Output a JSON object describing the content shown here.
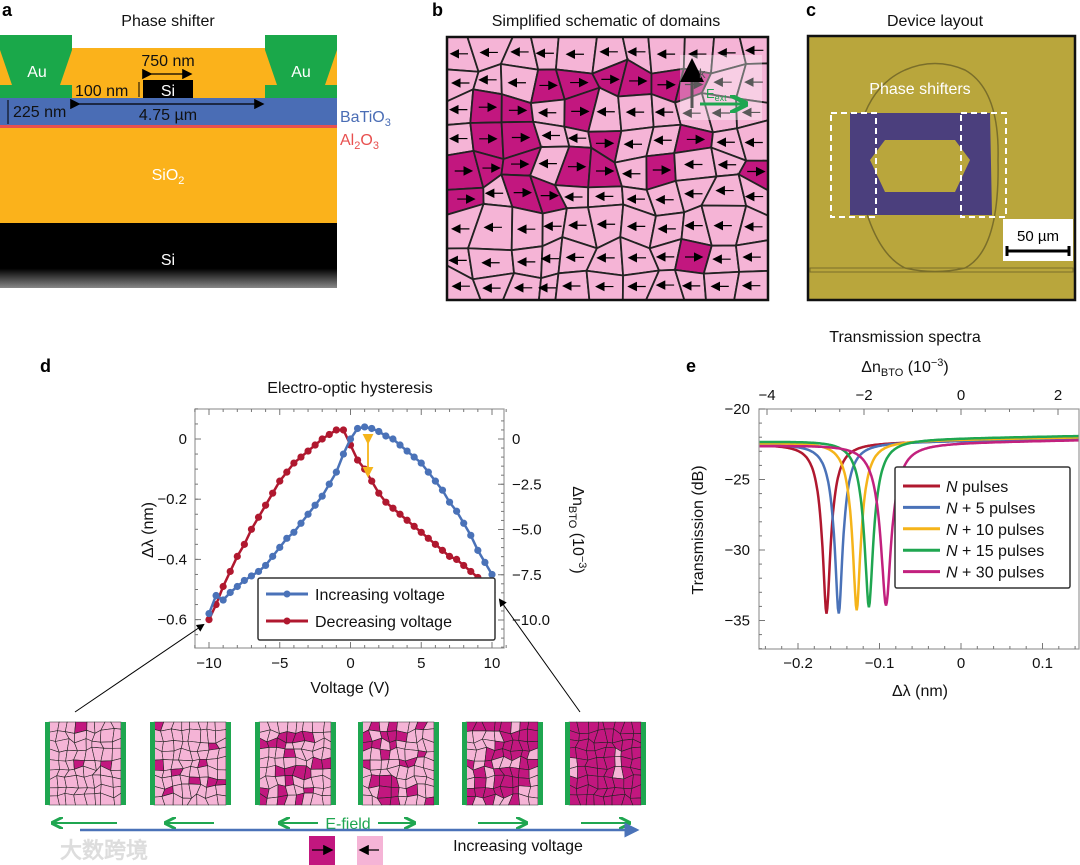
{
  "panels": {
    "a": {
      "letter": "a",
      "title": "Phase shifter",
      "au_label": "Au",
      "si_wg_label": "Si",
      "si_sub_label": "Si",
      "sio2": {
        "base": "SiO",
        "sub": "2"
      },
      "bto": {
        "base": "BaTiO",
        "sub": "3"
      },
      "alo": {
        "base": "Al",
        "sub1": "2",
        "mid": "O",
        "sub2": "3"
      },
      "dim_750": "750 nm",
      "dim_100": "100 nm",
      "dim_225": "225 nm",
      "dim_475": "4.75 µm",
      "colors": {
        "au": "#1aa84a",
        "cladding": "#fbb21b",
        "bto": "#4a6db5",
        "alo": "#e8504f",
        "si": "#000000"
      }
    },
    "b": {
      "letter": "b",
      "title": "Simplified schematic of domains",
      "k_label": "k",
      "e_label": {
        "base": "E",
        "sub": "ext"
      },
      "colors": {
        "switched": "#c2177f",
        "unswitched": "#f5b4d6"
      }
    },
    "c": {
      "letter": "c",
      "title": "Device layout",
      "phase_shifters_label": "Phase shifters",
      "scale_bar_label": "50 µm"
    },
    "d": {
      "letter": "d"
    },
    "e": {
      "letter": "e"
    }
  },
  "bottom": {
    "efield_label": "E-field",
    "increasing_voltage_label": "Increasing voltage",
    "domain_switched_fraction": [
      0.08,
      0.12,
      0.25,
      0.35,
      0.6,
      0.93
    ],
    "efield_direction": [
      "left",
      "left",
      "left",
      "right",
      "right",
      "right"
    ],
    "watermark": "大数跨境"
  },
  "chart_data": [
    {
      "type": "line",
      "title": "Electro-optic hysteresis",
      "xlabel": "Voltage (V)",
      "ylabel": "Δλ (nm)",
      "y2label": {
        "base": "Δn",
        "sub": "BTO",
        "unit": " (10",
        "sup": "−3",
        "close": ")"
      },
      "xlim": [
        -11,
        11
      ],
      "ylim": [
        -0.69,
        0.1
      ],
      "xticks": [
        "−10",
        "−5",
        "0",
        "5",
        "10"
      ],
      "yticks": [
        "0",
        "−0.2",
        "−0.4",
        "−0.6"
      ],
      "y2ticks": [
        "0",
        "−2.5",
        "−5.0",
        "−7.5",
        "−10.0"
      ],
      "x": [
        -10,
        -9.5,
        -9,
        -8.5,
        -8,
        -7.5,
        -7,
        -6.5,
        -6,
        -5.5,
        -5,
        -4.5,
        -4,
        -3.5,
        -3,
        -2.5,
        -2,
        -1.5,
        -1,
        -0.5,
        0,
        0.5,
        1,
        1.5,
        2,
        2.5,
        3,
        3.5,
        4,
        4.5,
        5,
        5.5,
        6,
        6.5,
        7,
        7.5,
        8,
        8.5,
        9,
        9.5,
        10
      ],
      "series": [
        {
          "name": "Increasing voltage",
          "color": "#4a72b8",
          "values": [
            -0.58,
            -0.52,
            -0.535,
            -0.51,
            -0.49,
            -0.47,
            -0.455,
            -0.44,
            -0.42,
            -0.39,
            -0.36,
            -0.33,
            -0.31,
            -0.28,
            -0.25,
            -0.22,
            -0.19,
            -0.15,
            -0.11,
            -0.05,
            0.0,
            0.035,
            0.04,
            0.035,
            0.025,
            0.01,
            0.0,
            -0.02,
            -0.04,
            -0.06,
            -0.08,
            -0.11,
            -0.14,
            -0.17,
            -0.21,
            -0.24,
            -0.28,
            -0.32,
            -0.37,
            -0.41,
            -0.45
          ]
        },
        {
          "name": "Decreasing voltage",
          "color": "#b0182f",
          "values": [
            -0.6,
            -0.55,
            -0.49,
            -0.44,
            -0.39,
            -0.35,
            -0.3,
            -0.26,
            -0.22,
            -0.18,
            -0.14,
            -0.11,
            -0.08,
            -0.06,
            -0.04,
            -0.02,
            0.0,
            0.015,
            0.03,
            0.03,
            -0.02,
            -0.07,
            -0.1,
            -0.14,
            -0.18,
            -0.21,
            -0.23,
            -0.25,
            -0.27,
            -0.29,
            -0.31,
            -0.33,
            -0.35,
            -0.37,
            -0.39,
            -0.4,
            -0.42,
            -0.44,
            -0.46,
            -0.49,
            -0.51
          ]
        }
      ],
      "annotation": {
        "type": "double-arrow",
        "x": 2,
        "y_from": 0.0,
        "y_to": -0.14,
        "color": "#f5b41a"
      },
      "legend": "bottom-right"
    },
    {
      "type": "line",
      "title": "Transmission spectra",
      "xlabel": "Δλ (nm)",
      "ylabel": "Transmission (dB)",
      "x2label": {
        "base": "Δn",
        "sub": "BTO",
        "unit": " (10",
        "sup": "−3",
        "close": ")"
      },
      "xlim": [
        -0.249,
        0.145
      ],
      "ylim": [
        -37,
        -20
      ],
      "xticks": [
        "−0.2",
        "−0.1",
        "0",
        "0.1"
      ],
      "x2ticks": [
        "−4",
        "−2",
        "0",
        "2"
      ],
      "yticks": [
        "−20",
        "−25",
        "−30",
        "−35"
      ],
      "series": [
        {
          "name": {
            "n": "N",
            "rest": " pulses"
          },
          "color": "#b0182f",
          "resonance_nm": -0.165,
          "min_dB": -34.6,
          "baseline_dB": -22.5,
          "hwhm_nm": 0.013
        },
        {
          "name": {
            "n": "N",
            "rest": " + 5 pulses"
          },
          "color": "#4a72b8",
          "resonance_nm": -0.15,
          "min_dB": -34.6,
          "baseline_dB": -22.5,
          "hwhm_nm": 0.013
        },
        {
          "name": {
            "n": "N",
            "rest": " + 10 pulses"
          },
          "color": "#f5b41a",
          "resonance_nm": -0.128,
          "min_dB": -34.4,
          "baseline_dB": -22.4,
          "hwhm_nm": 0.013
        },
        {
          "name": {
            "n": "N",
            "rest": " + 15 pulses"
          },
          "color": "#1fa650",
          "resonance_nm": -0.113,
          "min_dB": -34.2,
          "baseline_dB": -22.3,
          "hwhm_nm": 0.014
        },
        {
          "name": {
            "n": "N",
            "rest": " + 30 pulses"
          },
          "color": "#c2217e",
          "resonance_nm": -0.092,
          "min_dB": -34.1,
          "baseline_dB": -22.6,
          "hwhm_nm": 0.016
        }
      ],
      "legend": "right"
    }
  ]
}
